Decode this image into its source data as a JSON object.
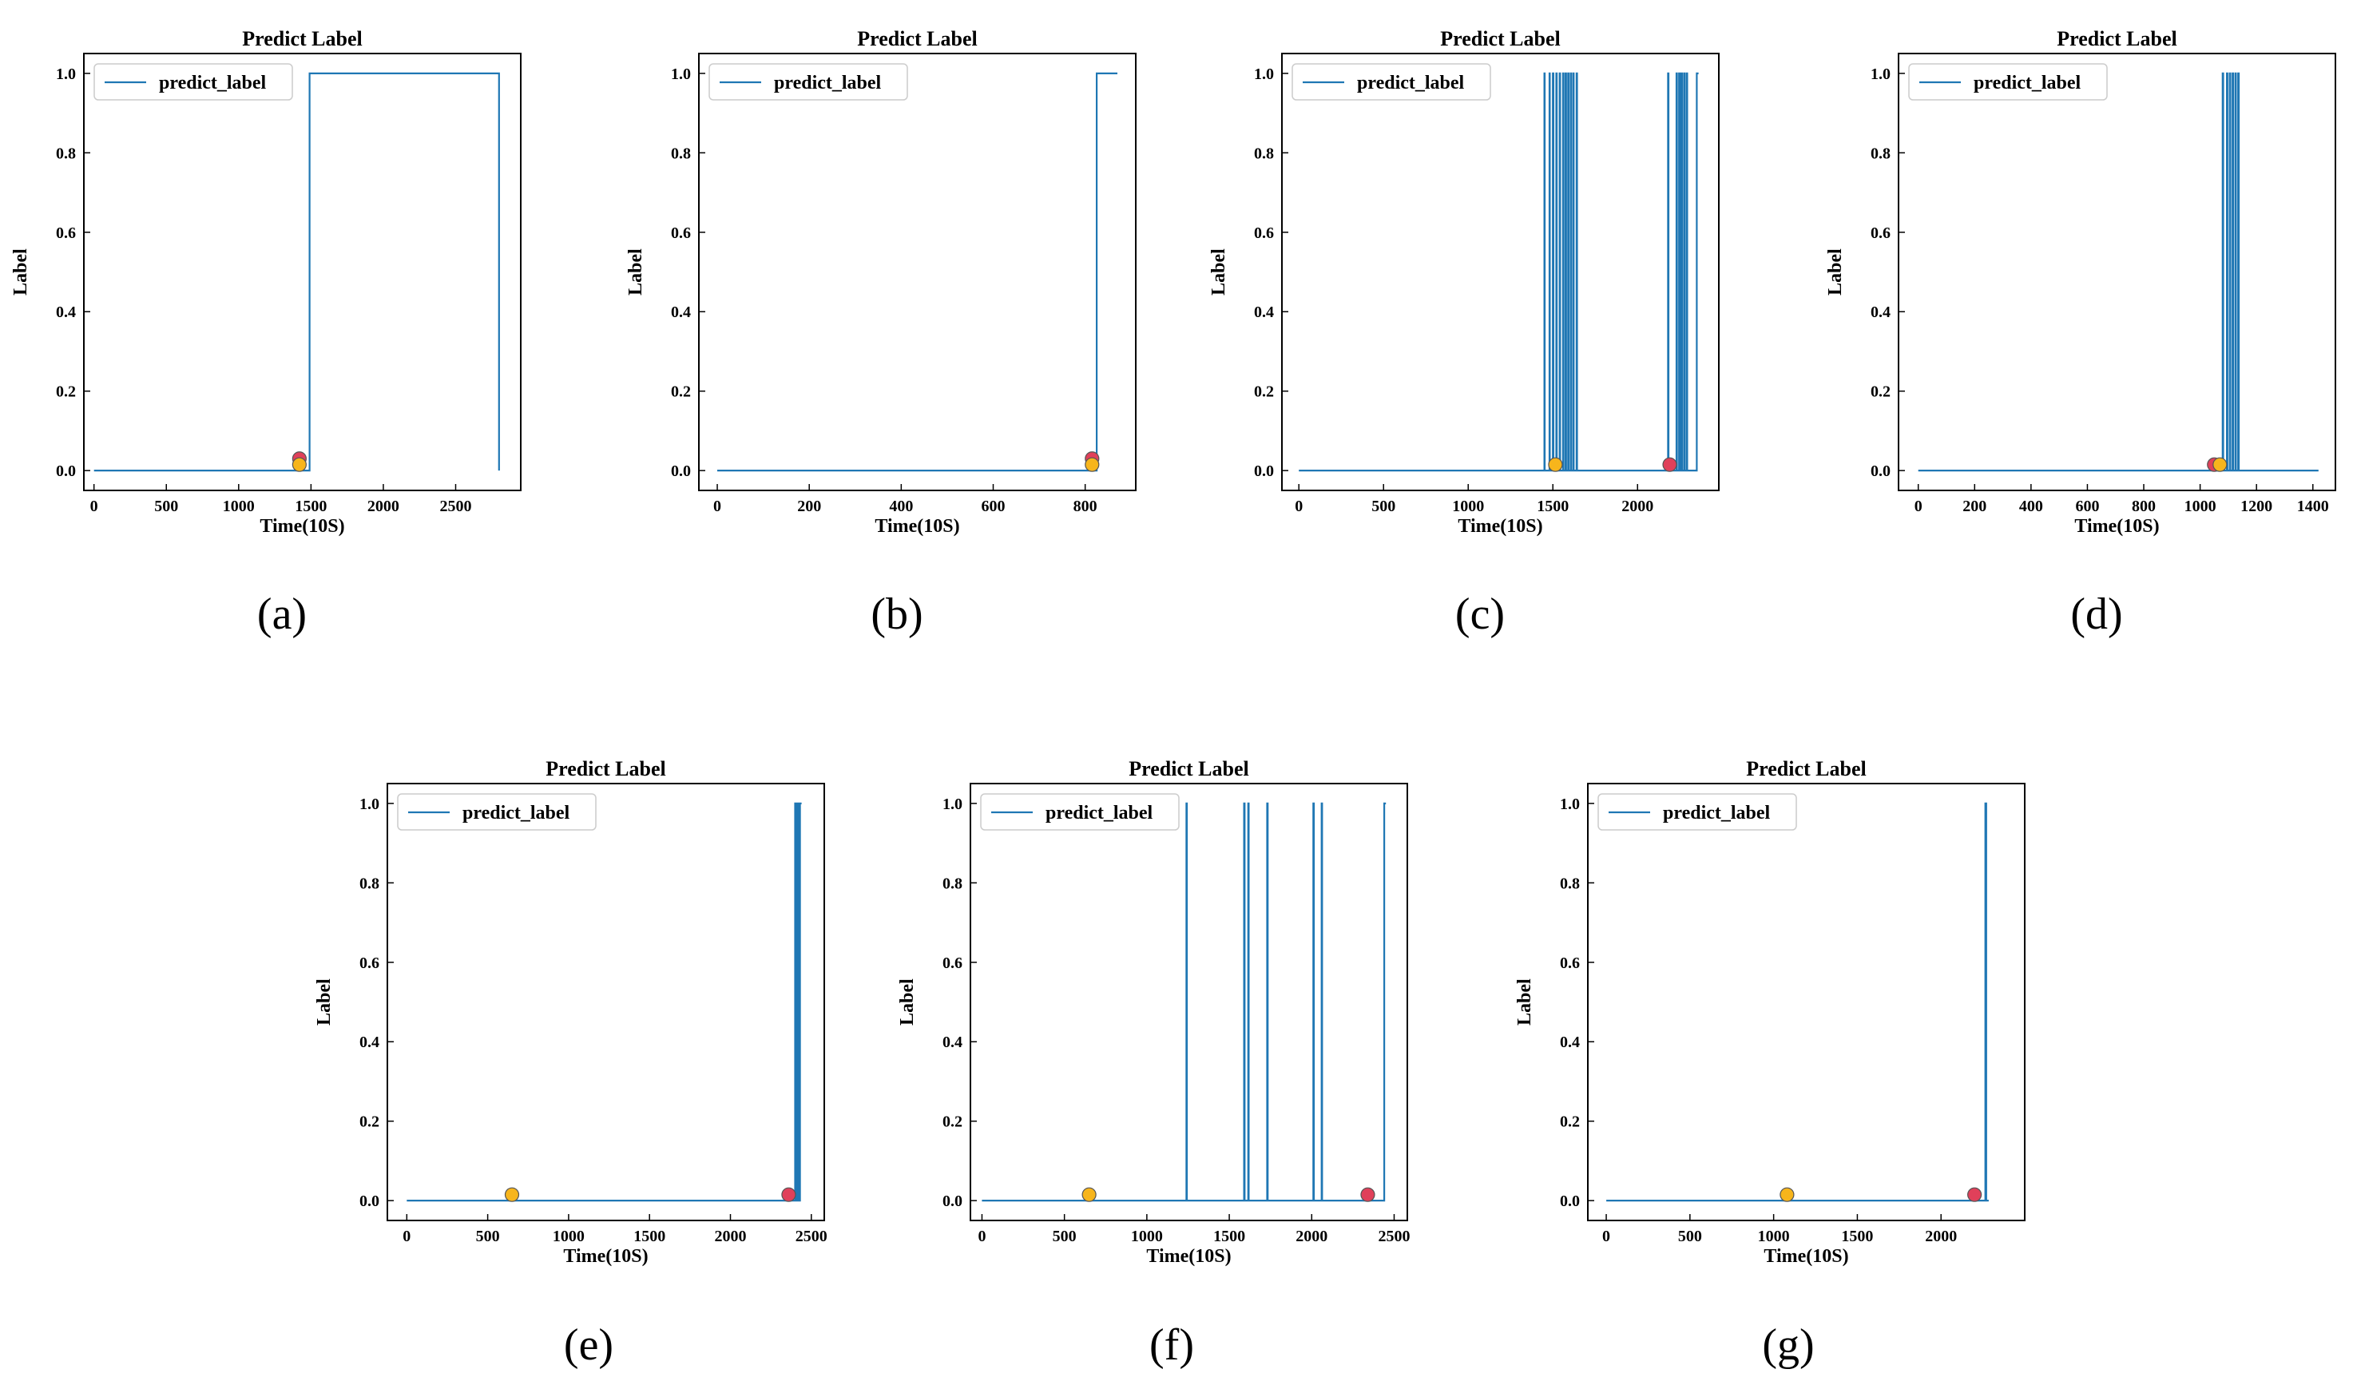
{
  "colors": {
    "line": "#1f77b4",
    "marker_red": "#e0405a",
    "marker_orange": "#f7b51c",
    "marker_edge": "#555555"
  },
  "chart_data": [
    {
      "type": "line",
      "panel": "(a)",
      "title": "Predict Label",
      "xlabel": "Time(10S)",
      "ylabel": "Label",
      "xlim": [
        -70,
        2950
      ],
      "ylim": [
        -0.05,
        1.05
      ],
      "xticks": [
        0,
        500,
        1000,
        1500,
        2000,
        2500
      ],
      "yticks": [
        0.0,
        0.2,
        0.4,
        0.6,
        0.8,
        1.0
      ],
      "legend": "predict_label",
      "legend_loc": "upper-left",
      "grid": false,
      "series": [
        {
          "name": "predict_label",
          "x": [
            0,
            1490,
            1490,
            2800,
            2800
          ],
          "y": [
            0,
            0,
            1,
            1,
            0
          ]
        }
      ],
      "markers": [
        {
          "x": 1420,
          "y": 0.03,
          "color": "red"
        },
        {
          "x": 1420,
          "y": 0.015,
          "color": "orange"
        }
      ]
    },
    {
      "type": "line",
      "panel": "(b)",
      "title": "Predict Label",
      "xlabel": "Time(10S)",
      "ylabel": "Label",
      "xlim": [
        -40,
        910
      ],
      "ylim": [
        -0.05,
        1.05
      ],
      "xticks": [
        0,
        200,
        400,
        600,
        800
      ],
      "yticks": [
        0.0,
        0.2,
        0.4,
        0.6,
        0.8,
        1.0
      ],
      "legend": "predict_label",
      "legend_loc": "upper-left",
      "grid": false,
      "series": [
        {
          "name": "predict_label",
          "x": [
            0,
            825,
            825,
            870
          ],
          "y": [
            0,
            0,
            1,
            1
          ]
        }
      ],
      "markers": [
        {
          "x": 815,
          "y": 0.03,
          "color": "red"
        },
        {
          "x": 815,
          "y": 0.015,
          "color": "orange"
        }
      ]
    },
    {
      "type": "line",
      "panel": "(c)",
      "title": "Predict Label",
      "xlabel": "Time(10S)",
      "ylabel": "Label",
      "xlim": [
        -100,
        2480
      ],
      "ylim": [
        -0.05,
        1.05
      ],
      "xticks": [
        0,
        500,
        1000,
        1500,
        2000
      ],
      "yticks": [
        0.0,
        0.2,
        0.4,
        0.6,
        0.8,
        1.0
      ],
      "legend": "predict_label",
      "legend_loc": "upper-left",
      "grid": false,
      "series": [
        {
          "name": "predict_label",
          "x": [
            0,
            1450,
            1450,
            1452,
            1452,
            1480,
            1480,
            1482,
            1482,
            1500,
            1500,
            1503,
            1503,
            1520,
            1520,
            1523,
            1523,
            1540,
            1540,
            1543,
            1543,
            1560,
            1560,
            1563,
            1563,
            1575,
            1575,
            1578,
            1578,
            1590,
            1590,
            1593,
            1593,
            1605,
            1605,
            1608,
            1608,
            1620,
            1620,
            1623,
            1623,
            1640,
            1640,
            1643,
            1643,
            2180,
            2180,
            2183,
            2183,
            2230,
            2230,
            2233,
            2233,
            2245,
            2245,
            2250,
            2250,
            2260,
            2260,
            2263,
            2263,
            2275,
            2275,
            2278,
            2278,
            2290,
            2290,
            2293,
            2293,
            2350,
            2350,
            2360
          ],
          "y": [
            0,
            0,
            1,
            1,
            0,
            0,
            1,
            1,
            0,
            0,
            1,
            1,
            0,
            0,
            1,
            1,
            0,
            0,
            1,
            1,
            0,
            0,
            1,
            1,
            0,
            0,
            1,
            1,
            0,
            0,
            1,
            1,
            0,
            0,
            1,
            1,
            0,
            0,
            1,
            1,
            0,
            0,
            1,
            1,
            0,
            0,
            1,
            1,
            0,
            0,
            1,
            1,
            0,
            0,
            1,
            1,
            0,
            0,
            1,
            1,
            0,
            0,
            1,
            1,
            0,
            0,
            1,
            1,
            0,
            0,
            1,
            1
          ]
        }
      ],
      "markers": [
        {
          "x": 2190,
          "y": 0.015,
          "color": "red"
        },
        {
          "x": 1515,
          "y": 0.015,
          "color": "orange"
        }
      ]
    },
    {
      "type": "line",
      "panel": "(d)",
      "title": "Predict Label",
      "xlabel": "Time(10S)",
      "ylabel": "Label",
      "xlim": [
        -70,
        1480
      ],
      "ylim": [
        -0.05,
        1.05
      ],
      "xticks": [
        0,
        200,
        400,
        600,
        800,
        1000,
        1200,
        1400
      ],
      "yticks": [
        0.0,
        0.2,
        0.4,
        0.6,
        0.8,
        1.0
      ],
      "legend": "predict_label",
      "legend_loc": "upper-left",
      "grid": false,
      "series": [
        {
          "name": "predict_label",
          "x": [
            0,
            1080,
            1080,
            1082,
            1082,
            1095,
            1095,
            1097,
            1097,
            1105,
            1105,
            1107,
            1107,
            1115,
            1115,
            1117,
            1117,
            1125,
            1125,
            1127,
            1127,
            1135,
            1135,
            1137,
            1137,
            1420
          ],
          "y": [
            0,
            0,
            1,
            1,
            0,
            0,
            1,
            1,
            0,
            0,
            1,
            1,
            0,
            0,
            1,
            1,
            0,
            0,
            1,
            1,
            0,
            0,
            1,
            1,
            0,
            0
          ]
        }
      ],
      "markers": [
        {
          "x": 1050,
          "y": 0.015,
          "color": "red"
        },
        {
          "x": 1070,
          "y": 0.015,
          "color": "orange"
        }
      ]
    },
    {
      "type": "line",
      "panel": "(e)",
      "title": "Predict Label",
      "xlabel": "Time(10S)",
      "ylabel": "Label",
      "xlim": [
        -120,
        2580
      ],
      "ylim": [
        -0.05,
        1.05
      ],
      "xticks": [
        0,
        500,
        1000,
        1500,
        2000,
        2500
      ],
      "yticks": [
        0.0,
        0.2,
        0.4,
        0.6,
        0.8,
        1.0
      ],
      "legend": "predict_label",
      "legend_loc": "upper-left",
      "grid": false,
      "series": [
        {
          "name": "predict_label",
          "x": [
            0,
            2400,
            2400,
            2405,
            2405,
            2415,
            2415,
            2420,
            2420,
            2430,
            2430,
            2440
          ],
          "y": [
            0,
            0,
            1,
            1,
            0,
            0,
            1,
            1,
            0,
            0,
            1,
            1
          ]
        }
      ],
      "markers": [
        {
          "x": 2360,
          "y": 0.015,
          "color": "red"
        },
        {
          "x": 650,
          "y": 0.015,
          "color": "orange"
        }
      ]
    },
    {
      "type": "line",
      "panel": "(f)",
      "title": "Predict Label",
      "xlabel": "Time(10S)",
      "ylabel": "Label",
      "xlim": [
        -70,
        2580
      ],
      "ylim": [
        -0.05,
        1.05
      ],
      "xticks": [
        0,
        500,
        1000,
        1500,
        2000,
        2500
      ],
      "yticks": [
        0.0,
        0.2,
        0.4,
        0.6,
        0.8,
        1.0
      ],
      "legend": "predict_label",
      "legend_loc": "upper-left",
      "grid": false,
      "series": [
        {
          "name": "predict_label",
          "x": [
            0,
            1240,
            1240,
            1243,
            1243,
            1590,
            1590,
            1593,
            1593,
            1615,
            1615,
            1618,
            1618,
            1730,
            1730,
            1733,
            1733,
            2010,
            2010,
            2013,
            2013,
            2060,
            2060,
            2063,
            2063,
            2440,
            2440,
            2450
          ],
          "y": [
            0,
            0,
            1,
            1,
            0,
            0,
            1,
            1,
            0,
            0,
            1,
            1,
            0,
            0,
            1,
            1,
            0,
            0,
            1,
            1,
            0,
            0,
            1,
            1,
            0,
            0,
            1,
            1
          ]
        }
      ],
      "markers": [
        {
          "x": 2340,
          "y": 0.015,
          "color": "red"
        },
        {
          "x": 650,
          "y": 0.015,
          "color": "orange"
        }
      ]
    },
    {
      "type": "line",
      "panel": "(g)",
      "title": "Predict Label",
      "xlabel": "Time(10S)",
      "ylabel": "Label",
      "xlim": [
        -110,
        2500
      ],
      "ylim": [
        -0.05,
        1.05
      ],
      "xticks": [
        0,
        500,
        1000,
        1500,
        2000
      ],
      "yticks": [
        0.0,
        0.2,
        0.4,
        0.6,
        0.8,
        1.0
      ],
      "legend": "predict_label",
      "legend_loc": "upper-left",
      "grid": false,
      "series": [
        {
          "name": "predict_label",
          "x": [
            0,
            2265,
            2265,
            2270,
            2270,
            2285
          ],
          "y": [
            0,
            0,
            1,
            1,
            0,
            0
          ]
        }
      ],
      "markers": [
        {
          "x": 2200,
          "y": 0.015,
          "color": "red"
        },
        {
          "x": 1080,
          "y": 0.015,
          "color": "orange"
        }
      ]
    }
  ]
}
